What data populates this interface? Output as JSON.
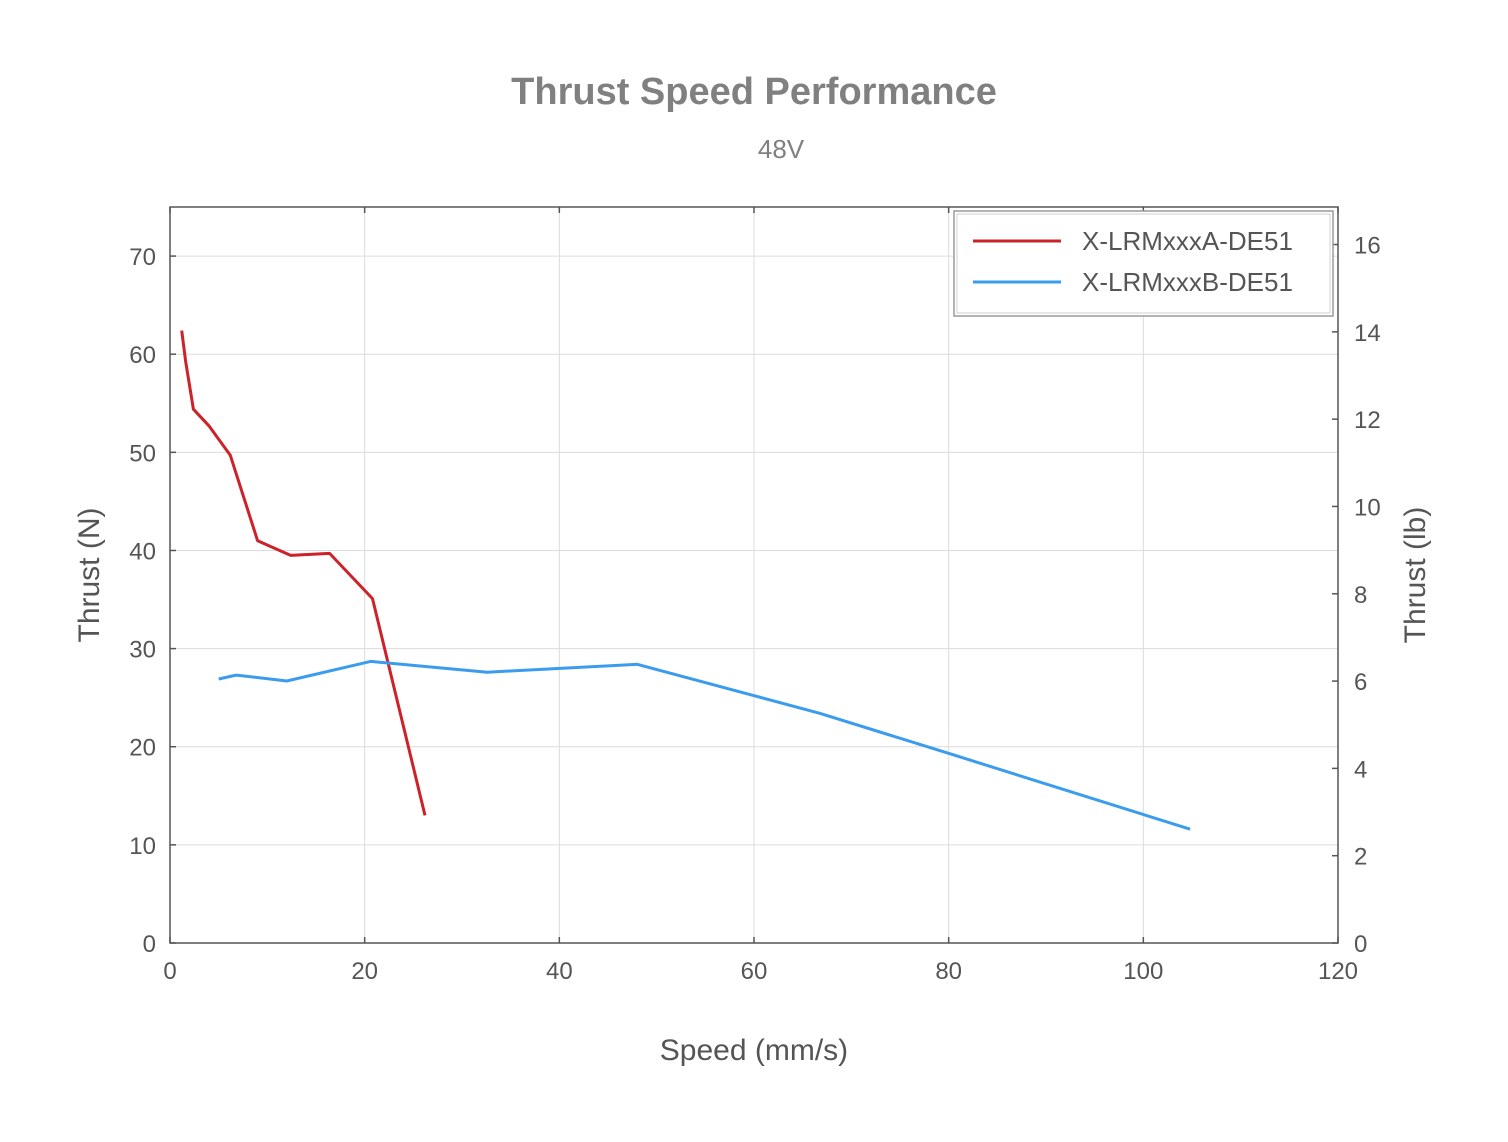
{
  "chart_data": {
    "type": "line",
    "title": "Thrust Speed Performance",
    "subtitle": "48V",
    "xlabel": "Speed (mm/s)",
    "ylabel": "Thrust (N)",
    "y2label": "Thrust (lb)",
    "xlim": [
      0,
      120
    ],
    "ylim": [
      0,
      75
    ],
    "y2lim": [
      0,
      16.86
    ],
    "xticks": [
      "0",
      "20",
      "40",
      "60",
      "80",
      "100",
      "120"
    ],
    "yticks": [
      "0",
      "10",
      "20",
      "30",
      "40",
      "50",
      "60",
      "70"
    ],
    "y2ticks": [
      "0",
      "2",
      "4",
      "6",
      "8",
      "10",
      "12",
      "14",
      "16"
    ],
    "grid": true,
    "legend_position": "top-right",
    "series": [
      {
        "name": "X-LRMxxxA-DE51",
        "color": "#cc2229",
        "points": [
          [
            1.2,
            62.4
          ],
          [
            1.6,
            59.3
          ],
          [
            2.4,
            54.4
          ],
          [
            4.0,
            52.7
          ],
          [
            6.2,
            49.7
          ],
          [
            9.0,
            41.0
          ],
          [
            12.4,
            39.5
          ],
          [
            16.4,
            39.7
          ],
          [
            20.8,
            35.1
          ],
          [
            26.2,
            13.0
          ]
        ]
      },
      {
        "name": "X-LRMxxxB-DE51",
        "color": "#3b9ced",
        "points": [
          [
            5.0,
            26.9
          ],
          [
            6.8,
            27.3
          ],
          [
            12.0,
            26.7
          ],
          [
            20.6,
            28.7
          ],
          [
            32.6,
            27.6
          ],
          [
            48.0,
            28.4
          ],
          [
            66.8,
            23.4
          ],
          [
            80.4,
            19.2
          ],
          [
            104.8,
            11.6
          ]
        ]
      }
    ]
  }
}
